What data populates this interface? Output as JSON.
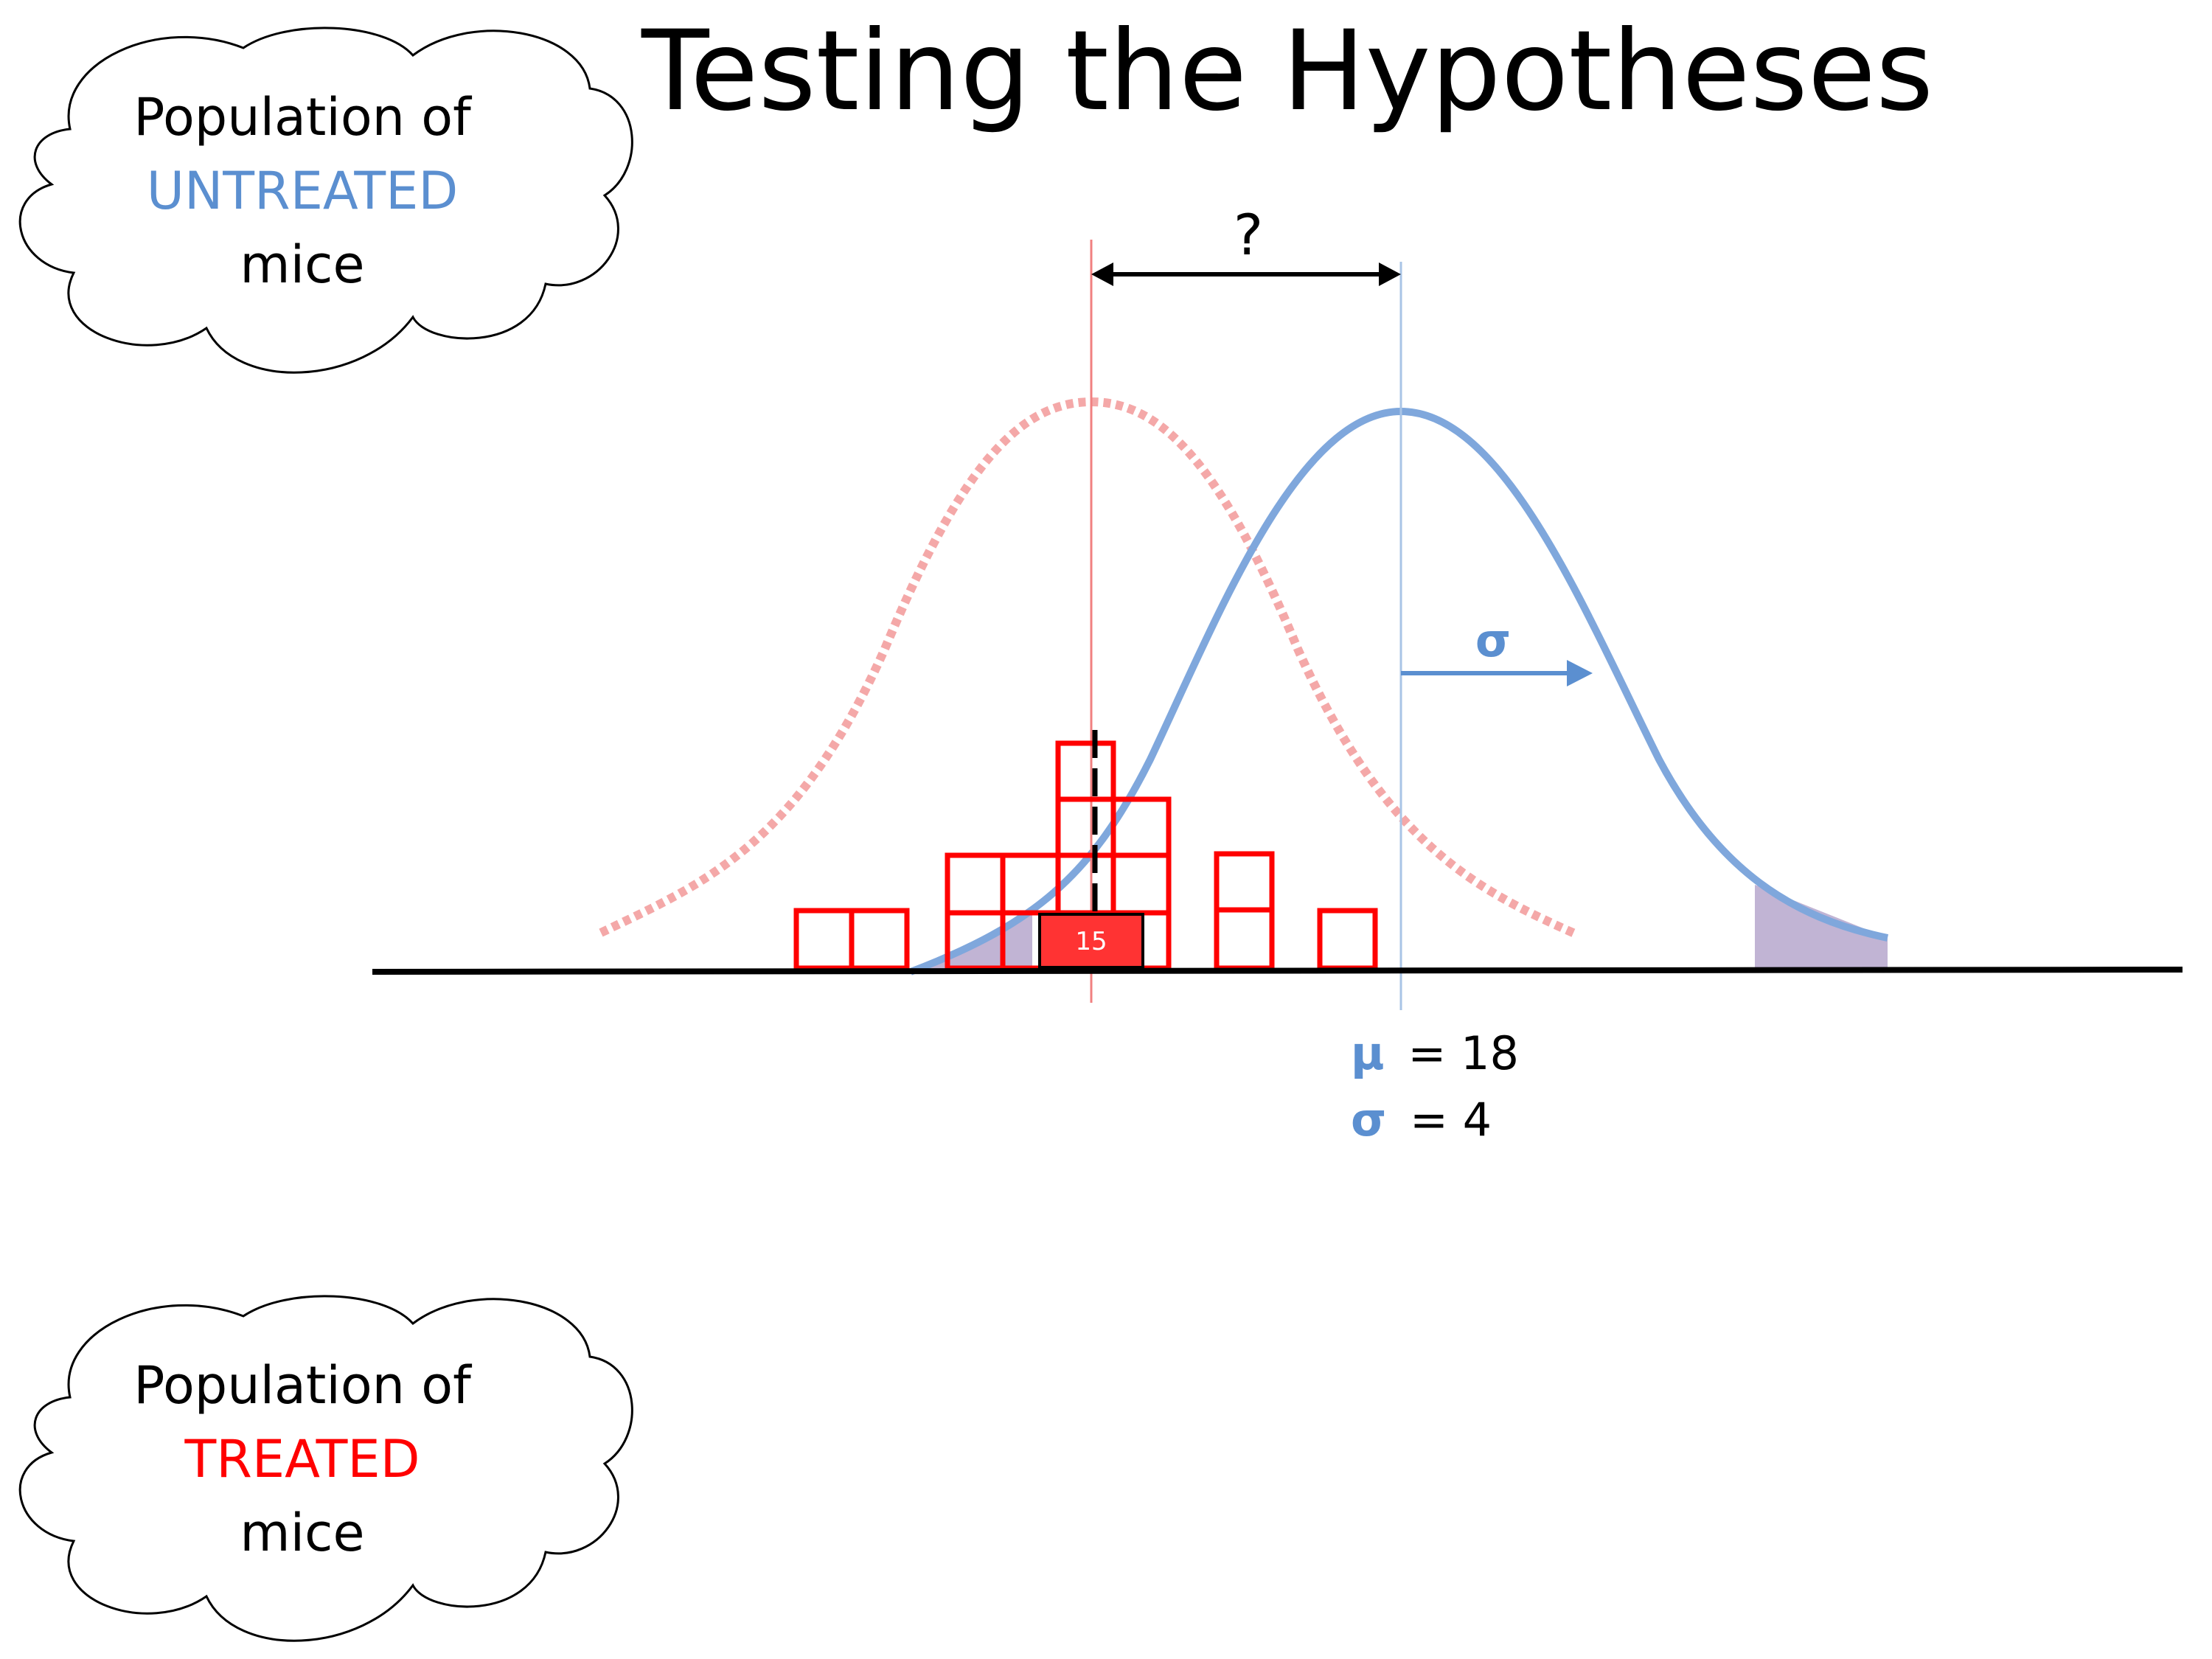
{
  "title": "Testing the Hypotheses",
  "cloud_top": {
    "line1": "Population of",
    "line2": "UNTREATED",
    "line3": "mice"
  },
  "cloud_bottom": {
    "line1": "Population of",
    "line2": "TREATED",
    "line3": "mice"
  },
  "diagram": {
    "difference_label": "?",
    "sigma_label": "σ",
    "mu_symbol": "μ",
    "mu_value": "= 18",
    "sigma_symbol": "σ",
    "sigma_value": "= 4",
    "sample_mean_label": "15"
  },
  "colors": {
    "untreated": "#5b8fd0",
    "treated": "#ff0000",
    "treated_light": "#f4a8a8",
    "tail_shade": "#b6a7cc",
    "ink": "#000000"
  }
}
